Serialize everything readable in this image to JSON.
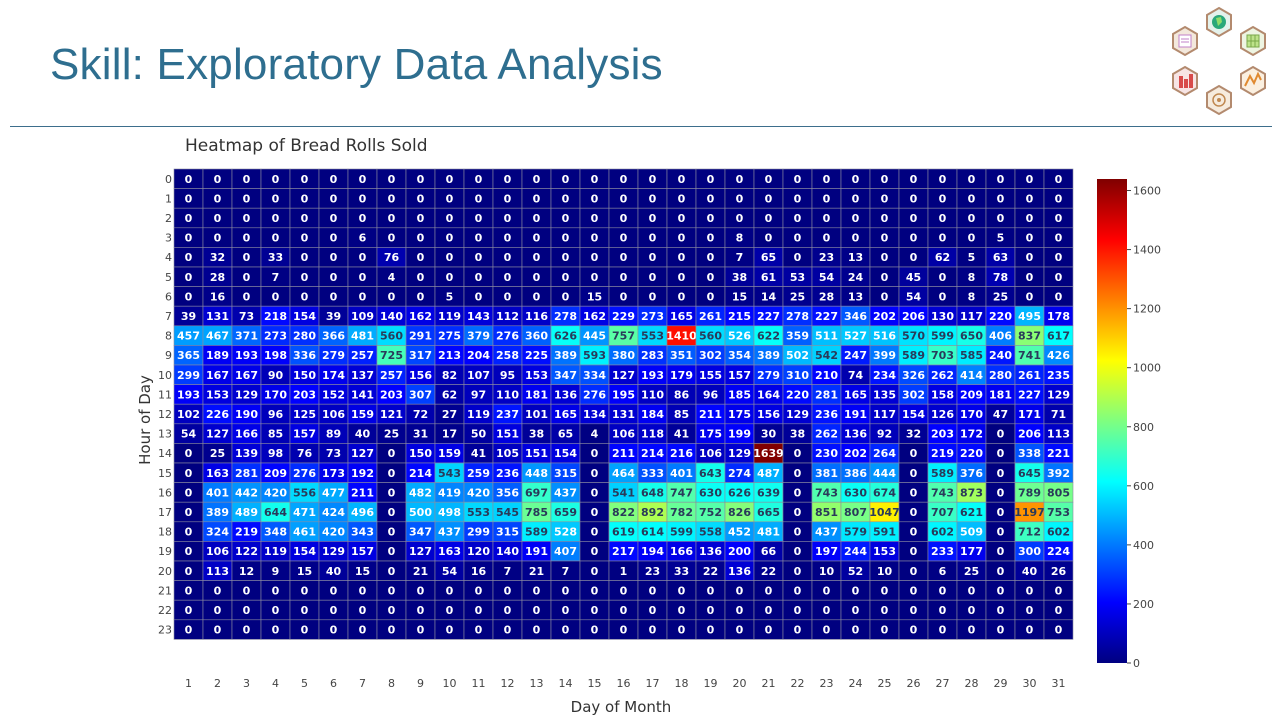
{
  "slide": {
    "title": "Skill: Exploratory Data Analysis"
  },
  "logo": {
    "icons": [
      "document-icon",
      "globe-icon",
      "grid-icon",
      "line-chart-icon",
      "bar-chart-icon",
      "network-icon"
    ]
  },
  "chart_data": {
    "type": "heatmap",
    "title": "Heatmap of Bread Rolls Sold",
    "xlabel": "Day of Month",
    "ylabel": "Hour of Day",
    "x": [
      1,
      2,
      3,
      4,
      5,
      6,
      7,
      8,
      9,
      10,
      11,
      12,
      13,
      14,
      15,
      16,
      17,
      18,
      19,
      20,
      21,
      22,
      23,
      24,
      25,
      26,
      27,
      28,
      29,
      30,
      31
    ],
    "y": [
      0,
      1,
      2,
      3,
      4,
      5,
      6,
      7,
      8,
      9,
      10,
      11,
      12,
      13,
      14,
      15,
      16,
      17,
      18,
      19,
      20,
      21,
      22,
      23
    ],
    "z": [
      [
        0,
        0,
        0,
        0,
        0,
        0,
        0,
        0,
        0,
        0,
        0,
        0,
        0,
        0,
        0,
        0,
        0,
        0,
        0,
        0,
        0,
        0,
        0,
        0,
        0,
        0,
        0,
        0,
        0,
        0,
        0
      ],
      [
        0,
        0,
        0,
        0,
        0,
        0,
        0,
        0,
        0,
        0,
        0,
        0,
        0,
        0,
        0,
        0,
        0,
        0,
        0,
        0,
        0,
        0,
        0,
        0,
        0,
        0,
        0,
        0,
        0,
        0,
        0
      ],
      [
        0,
        0,
        0,
        0,
        0,
        0,
        0,
        0,
        0,
        0,
        0,
        0,
        0,
        0,
        0,
        0,
        0,
        0,
        0,
        0,
        0,
        0,
        0,
        0,
        0,
        0,
        0,
        0,
        0,
        0,
        0
      ],
      [
        0,
        0,
        0,
        0,
        0,
        0,
        6,
        0,
        0,
        0,
        0,
        0,
        0,
        0,
        0,
        0,
        0,
        0,
        0,
        8,
        0,
        0,
        0,
        0,
        0,
        0,
        0,
        0,
        5,
        0,
        0
      ],
      [
        0,
        32,
        0,
        33,
        0,
        0,
        0,
        76,
        0,
        0,
        0,
        0,
        0,
        0,
        0,
        0,
        0,
        0,
        0,
        7,
        65,
        0,
        23,
        13,
        0,
        0,
        62,
        5,
        63,
        0,
        0
      ],
      [
        0,
        28,
        0,
        7,
        0,
        0,
        0,
        4,
        0,
        0,
        0,
        0,
        0,
        0,
        0,
        0,
        0,
        0,
        0,
        38,
        61,
        53,
        54,
        24,
        0,
        45,
        0,
        8,
        78,
        0,
        0
      ],
      [
        0,
        16,
        0,
        0,
        0,
        0,
        0,
        0,
        0,
        5,
        0,
        0,
        0,
        0,
        15,
        0,
        0,
        0,
        0,
        15,
        14,
        25,
        28,
        13,
        0,
        54,
        0,
        8,
        25,
        0,
        0
      ],
      [
        39,
        131,
        73,
        218,
        154,
        39,
        109,
        140,
        162,
        119,
        143,
        112,
        116,
        278,
        162,
        229,
        273,
        165,
        261,
        215,
        227,
        278,
        227,
        346,
        202,
        206,
        130,
        117,
        220,
        495,
        178
      ],
      [
        457,
        467,
        371,
        273,
        280,
        366,
        481,
        560,
        291,
        275,
        379,
        276,
        360,
        626,
        445,
        757,
        553,
        1410,
        560,
        526,
        622,
        359,
        511,
        527,
        516,
        570,
        599,
        650,
        406,
        837,
        617
      ],
      [
        365,
        189,
        193,
        198,
        336,
        279,
        257,
        725,
        317,
        213,
        204,
        258,
        225,
        389,
        593,
        380,
        283,
        351,
        302,
        354,
        389,
        502,
        542,
        247,
        399,
        589,
        703,
        585,
        240,
        741,
        426
      ],
      [
        299,
        167,
        167,
        90,
        150,
        174,
        137,
        257,
        156,
        82,
        107,
        95,
        153,
        347,
        334,
        127,
        193,
        179,
        155,
        157,
        279,
        310,
        210,
        74,
        234,
        326,
        262,
        414,
        280,
        261,
        235
      ],
      [
        193,
        153,
        129,
        170,
        203,
        152,
        141,
        203,
        307,
        62,
        97,
        110,
        181,
        136,
        276,
        195,
        110,
        86,
        96,
        185,
        164,
        220,
        281,
        165,
        135,
        302,
        158,
        209,
        181,
        227,
        129
      ],
      [
        102,
        226,
        190,
        96,
        125,
        106,
        159,
        121,
        72,
        27,
        119,
        237,
        101,
        165,
        134,
        131,
        184,
        85,
        211,
        175,
        156,
        129,
        236,
        191,
        117,
        154,
        126,
        170,
        47,
        171,
        71
      ],
      [
        54,
        127,
        166,
        85,
        157,
        89,
        40,
        25,
        31,
        17,
        50,
        151,
        38,
        65,
        4,
        106,
        118,
        41,
        175,
        199,
        30,
        38,
        262,
        136,
        92,
        32,
        203,
        172,
        0,
        206,
        113
      ],
      [
        0,
        25,
        139,
        98,
        76,
        73,
        127,
        0,
        150,
        159,
        41,
        105,
        151,
        154,
        0,
        211,
        214,
        216,
        106,
        129,
        1639,
        0,
        230,
        202,
        264,
        0,
        219,
        220,
        0,
        338,
        221
      ],
      [
        0,
        163,
        281,
        209,
        276,
        173,
        192,
        0,
        214,
        543,
        259,
        236,
        448,
        315,
        0,
        464,
        333,
        401,
        643,
        274,
        487,
        0,
        381,
        386,
        444,
        0,
        589,
        376,
        0,
        645,
        392
      ],
      [
        0,
        401,
        442,
        420,
        556,
        477,
        211,
        0,
        482,
        419,
        420,
        356,
        697,
        437,
        0,
        541,
        648,
        747,
        630,
        626,
        639,
        0,
        743,
        630,
        674,
        0,
        743,
        873,
        0,
        789,
        805
      ],
      [
        0,
        389,
        489,
        644,
        471,
        424,
        496,
        0,
        500,
        498,
        553,
        545,
        785,
        659,
        0,
        822,
        892,
        782,
        752,
        826,
        665,
        0,
        851,
        807,
        1047,
        0,
        707,
        621,
        0,
        1197,
        753
      ],
      [
        0,
        324,
        219,
        348,
        461,
        420,
        343,
        0,
        347,
        437,
        299,
        315,
        589,
        528,
        0,
        619,
        614,
        599,
        558,
        452,
        481,
        0,
        437,
        579,
        591,
        0,
        602,
        509,
        0,
        712,
        602
      ],
      [
        0,
        106,
        122,
        119,
        154,
        129,
        157,
        0,
        127,
        163,
        120,
        140,
        191,
        407,
        0,
        217,
        194,
        166,
        136,
        200,
        66,
        0,
        197,
        244,
        153,
        0,
        233,
        177,
        0,
        300,
        224
      ],
      [
        0,
        113,
        12,
        9,
        15,
        40,
        15,
        0,
        21,
        54,
        16,
        7,
        21,
        7,
        0,
        1,
        23,
        33,
        22,
        136,
        22,
        0,
        10,
        52,
        10,
        0,
        6,
        25,
        0,
        40,
        26
      ],
      [
        0,
        0,
        0,
        0,
        0,
        0,
        0,
        0,
        0,
        0,
        0,
        0,
        0,
        0,
        0,
        0,
        0,
        0,
        0,
        0,
        0,
        0,
        0,
        0,
        0,
        0,
        0,
        0,
        0,
        0,
        0
      ],
      [
        0,
        0,
        0,
        0,
        0,
        0,
        0,
        0,
        0,
        0,
        0,
        0,
        0,
        0,
        0,
        0,
        0,
        0,
        0,
        0,
        0,
        0,
        0,
        0,
        0,
        0,
        0,
        0,
        0,
        0,
        0
      ],
      [
        0,
        0,
        0,
        0,
        0,
        0,
        0,
        0,
        0,
        0,
        0,
        0,
        0,
        0,
        0,
        0,
        0,
        0,
        0,
        0,
        0,
        0,
        0,
        0,
        0,
        0,
        0,
        0,
        0,
        0,
        0
      ]
    ],
    "zlim": [
      0,
      1639
    ],
    "colorscale": "jet",
    "colorbar_ticks": [
      0,
      200,
      400,
      600,
      800,
      1000,
      1200,
      1400,
      1600
    ],
    "grid": false
  }
}
